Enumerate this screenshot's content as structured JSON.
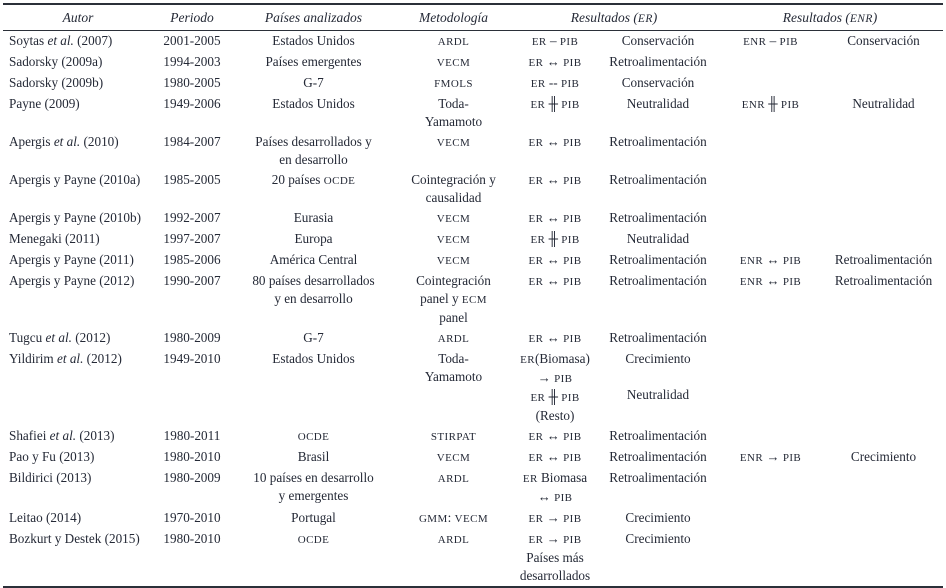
{
  "page": {
    "background_color": "#ffffff",
    "text_color": "#242936",
    "rule_color": "#2b3039"
  },
  "table": {
    "headers": {
      "autor": "Autor",
      "periodo": "Periodo",
      "paises": "Países analizados",
      "metodologia": "Metodología",
      "resultados_er": "Resultados (ER)",
      "resultados_enr": "Resultados (ENR)"
    },
    "rows": [
      {
        "autor": "Soytas et al. (2007)",
        "periodo": "2001-2005",
        "paises": [
          "Estados Unidos"
        ],
        "metodologia": [
          "ARDL"
        ],
        "er_rel": [
          "ER – PIB"
        ],
        "er_res": [
          "Conservación"
        ],
        "enr_rel": [
          "ENR – PIB"
        ],
        "enr_res": [
          "Conservación"
        ]
      },
      {
        "autor": "Sadorsky (2009a)",
        "periodo": "1994-2003",
        "paises": [
          "Países emergentes"
        ],
        "metodologia": [
          "VECM"
        ],
        "er_rel": [
          "ER ↔ PIB"
        ],
        "er_res": [
          "Retroalimentación"
        ],
        "enr_rel": [],
        "enr_res": []
      },
      {
        "autor": "Sadorsky (2009b)",
        "periodo": "1980-2005",
        "paises": [
          "G-7"
        ],
        "metodologia": [
          "FMOLS"
        ],
        "er_rel": [
          "ER -- PIB"
        ],
        "er_res": [
          "Conservación"
        ],
        "enr_rel": [],
        "enr_res": []
      },
      {
        "autor": "Payne (2009)",
        "periodo": "1949-2006",
        "paises": [
          "Estados Unidos"
        ],
        "metodologia": [
          "Toda-",
          "Yamamoto"
        ],
        "er_rel": [
          "ER ╫ PIB"
        ],
        "er_res": [
          "Neutralidad"
        ],
        "enr_rel": [
          "ENR ╫ PIB"
        ],
        "enr_res": [
          "Neutralidad"
        ]
      },
      {
        "autor": "Apergis et al. (2010)",
        "periodo": "1984-2007",
        "paises": [
          "Países desarrollados y",
          "en desarrollo"
        ],
        "metodologia": [
          "VECM"
        ],
        "er_rel": [
          "ER ↔ PIB"
        ],
        "er_res": [
          "Retroalimentación"
        ],
        "enr_rel": [],
        "enr_res": []
      },
      {
        "autor": "Apergis y Payne (2010a)",
        "periodo": "1985-2005",
        "paises": [
          "20 países OCDE"
        ],
        "metodologia": [
          "Cointegración y",
          "causalidad"
        ],
        "er_rel": [
          "ER ↔ PIB"
        ],
        "er_res": [
          "Retroalimentación"
        ],
        "enr_rel": [],
        "enr_res": []
      },
      {
        "autor": "Apergis y Payne (2010b)",
        "periodo": "1992-2007",
        "paises": [
          "Eurasia"
        ],
        "metodologia": [
          "VECM"
        ],
        "er_rel": [
          "ER ↔ PIB"
        ],
        "er_res": [
          "Retroalimentación"
        ],
        "enr_rel": [],
        "enr_res": []
      },
      {
        "autor": "Menegaki (2011)",
        "periodo": "1997-2007",
        "paises": [
          "Europa"
        ],
        "metodologia": [
          "VECM"
        ],
        "er_rel": [
          "ER ╫ PIB"
        ],
        "er_res": [
          "Neutralidad"
        ],
        "enr_rel": [],
        "enr_res": []
      },
      {
        "autor": "Apergis y Payne (2011)",
        "periodo": "1985-2006",
        "paises": [
          "América Central"
        ],
        "metodologia": [
          "VECM"
        ],
        "er_rel": [
          "ER ↔ PIB"
        ],
        "er_res": [
          "Retroalimentación"
        ],
        "enr_rel": [
          "ENR ↔ PIB"
        ],
        "enr_res": [
          "Retroalimentación"
        ]
      },
      {
        "autor": "Apergis y Payne (2012)",
        "periodo": "1990-2007",
        "paises": [
          "80 países desarrollados",
          "y en desarrollo"
        ],
        "metodologia": [
          "Cointegración",
          "panel y ECM",
          "panel"
        ],
        "er_rel": [
          "ER ↔ PIB"
        ],
        "er_res": [
          "Retroalimentación"
        ],
        "enr_rel": [
          "ENR ↔ PIB"
        ],
        "enr_res": [
          "Retroalimentación"
        ]
      },
      {
        "autor": "Tugcu et al. (2012)",
        "periodo": "1980-2009",
        "paises": [
          "G-7"
        ],
        "metodologia": [
          "ARDL"
        ],
        "er_rel": [
          "ER ↔ PIB"
        ],
        "er_res": [
          "Retroalimentación"
        ],
        "enr_rel": [],
        "enr_res": []
      },
      {
        "autor": "Yildirim et al. (2012)",
        "periodo": "1949-2010",
        "paises": [
          "Estados Unidos"
        ],
        "metodologia": [
          "Toda-",
          "Yamamoto"
        ],
        "er_rel": [
          "ER(Biomasa)",
          "→ PIB",
          "ER ╫ PIB",
          "(Resto)"
        ],
        "er_res": [
          "Crecimiento",
          "",
          "Neutralidad"
        ],
        "enr_rel": [],
        "enr_res": []
      },
      {
        "autor": "Shafiei et al. (2013)",
        "periodo": "1980-2011",
        "paises": [
          "OCDE"
        ],
        "metodologia": [
          "STIRPAT"
        ],
        "er_rel": [
          "ER ↔ PIB"
        ],
        "er_res": [
          "Retroalimentación"
        ],
        "enr_rel": [],
        "enr_res": []
      },
      {
        "autor": "Pao y Fu (2013)",
        "periodo": "1980-2010",
        "paises": [
          "Brasil"
        ],
        "metodologia": [
          "VECM"
        ],
        "er_rel": [
          "ER ↔ PIB"
        ],
        "er_res": [
          "Retroalimentación"
        ],
        "enr_rel": [
          "ENR → PIB"
        ],
        "enr_res": [
          "Crecimiento"
        ]
      },
      {
        "autor": "Bildirici (2013)",
        "periodo": "1980-2009",
        "paises": [
          "10 países en desarrollo",
          "y emergentes"
        ],
        "metodologia": [
          "ARDL"
        ],
        "er_rel": [
          "ER Biomasa",
          "↔ PIB"
        ],
        "er_res": [
          "Retroalimentación"
        ],
        "enr_rel": [],
        "enr_res": []
      },
      {
        "autor": "Leitao (2014)",
        "periodo": "1970-2010",
        "paises": [
          "Portugal"
        ],
        "metodologia": [
          "GMM: VECM"
        ],
        "er_rel": [
          "ER → PIB"
        ],
        "er_res": [
          "Crecimiento"
        ],
        "enr_rel": [],
        "enr_res": []
      },
      {
        "autor": "Bozkurt y Destek (2015)",
        "periodo": "1980-2010",
        "paises": [
          "OCDE"
        ],
        "metodologia": [
          "ARDL"
        ],
        "er_rel": [
          "ER → PIB",
          "Países más",
          "desarrollados"
        ],
        "er_res": [
          "Crecimiento"
        ],
        "enr_rel": [],
        "enr_res": []
      }
    ]
  }
}
